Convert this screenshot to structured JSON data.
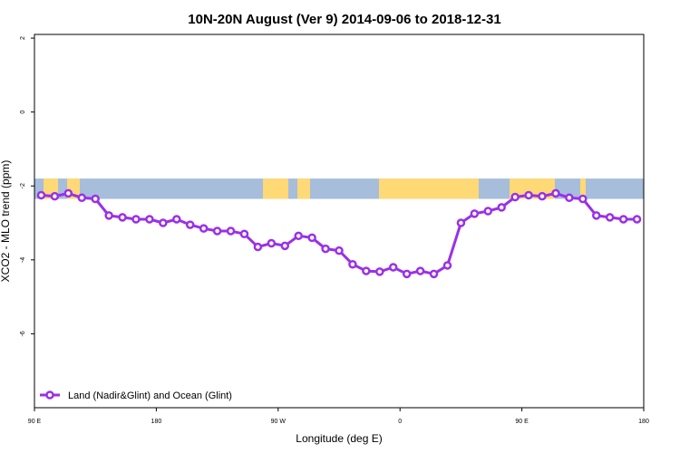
{
  "chart_data": {
    "type": "line",
    "title": "10N-20N August (Ver 9)   2014-09-06 to 2018-12-31",
    "xlabel": "Longitude (deg E)",
    "ylabel": "XCO2 - MLO trend (ppm)",
    "x_ticks": [
      {
        "value": 90,
        "label": "90 E"
      },
      {
        "value": 180,
        "label": "180"
      },
      {
        "value": 270,
        "label": "90 W"
      },
      {
        "value": 360,
        "label": "0"
      },
      {
        "value": 450,
        "label": "90 E"
      },
      {
        "value": 540,
        "label": "180"
      }
    ],
    "y_ticks": [
      {
        "value": 2,
        "label": "2"
      },
      {
        "value": 0,
        "label": "0"
      },
      {
        "value": -2,
        "label": "-2"
      },
      {
        "value": -4,
        "label": "-4"
      },
      {
        "value": -6,
        "label": "-6"
      }
    ],
    "xlim": [
      90,
      540
    ],
    "ylim": [
      -8,
      2.1
    ],
    "map_band": {
      "y_top": -1.8,
      "y_bottom": -2.35,
      "ocean_color": "#a6bddb",
      "land_color": "#fed976"
    },
    "series": [
      {
        "name": "Land (Nadir&Glint) and Ocean (Glint)",
        "color": "#9b30e6",
        "x": [
          95,
          105,
          115,
          125,
          135,
          145,
          155,
          165,
          175,
          185,
          195,
          205,
          215,
          225,
          235,
          245,
          255,
          265,
          275,
          285,
          295,
          305,
          315,
          325,
          335,
          345,
          355,
          365,
          375,
          385,
          395,
          405,
          415,
          425,
          435,
          445,
          455,
          465,
          475,
          485,
          495,
          505,
          515,
          525,
          535
        ],
        "y": [
          -2.25,
          -2.28,
          -2.2,
          -2.32,
          -2.35,
          -2.8,
          -2.85,
          -2.9,
          -2.9,
          -3.0,
          -2.9,
          -3.05,
          -3.15,
          -3.22,
          -3.22,
          -3.3,
          -3.65,
          -3.55,
          -3.62,
          -3.35,
          -3.4,
          -3.7,
          -3.75,
          -4.12,
          -4.3,
          -4.32,
          -4.2,
          -4.38,
          -4.3,
          -4.38,
          -4.15,
          -3.0,
          -2.75,
          -2.68,
          -2.58,
          -2.3,
          -2.25,
          -2.28,
          -2.2,
          -2.32,
          -2.35,
          -2.8,
          -2.85,
          -2.9,
          -2.9
        ]
      }
    ],
    "legend_position": "bottom-left",
    "grid": false
  }
}
